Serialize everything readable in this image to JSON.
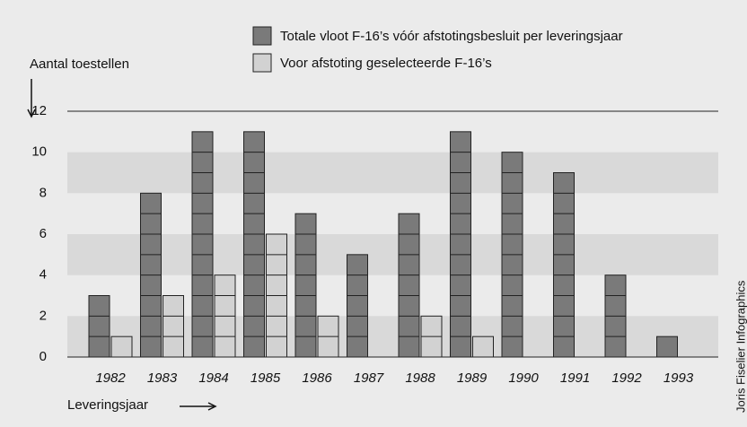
{
  "chart_data": {
    "type": "bar",
    "y_axis_label": "Aantal toestellen",
    "x_axis_label": "Leveringsjaar",
    "credit": "Joris Fiselier Infographics",
    "categories": [
      "1982",
      "1983",
      "1984",
      "1985",
      "1986",
      "1987",
      "1988",
      "1989",
      "1990",
      "1991",
      "1992",
      "1993"
    ],
    "series": [
      {
        "name": "Totale vloot F-16’s vóór afstotingsbesluit per leveringsjaar",
        "color": "#7a7a7a",
        "values": [
          3,
          8,
          11,
          11,
          7,
          5,
          7,
          11,
          10,
          9,
          4,
          1
        ]
      },
      {
        "name": "Voor afstoting geselecteerde F-16’s",
        "color": "#d2d2d2",
        "values": [
          1,
          3,
          4,
          6,
          2,
          0,
          2,
          1,
          0,
          0,
          0,
          0
        ]
      }
    ],
    "ylim": [
      0,
      12
    ],
    "yticks": [
      0,
      2,
      4,
      6,
      8,
      10,
      12
    ],
    "grid": "bands"
  }
}
